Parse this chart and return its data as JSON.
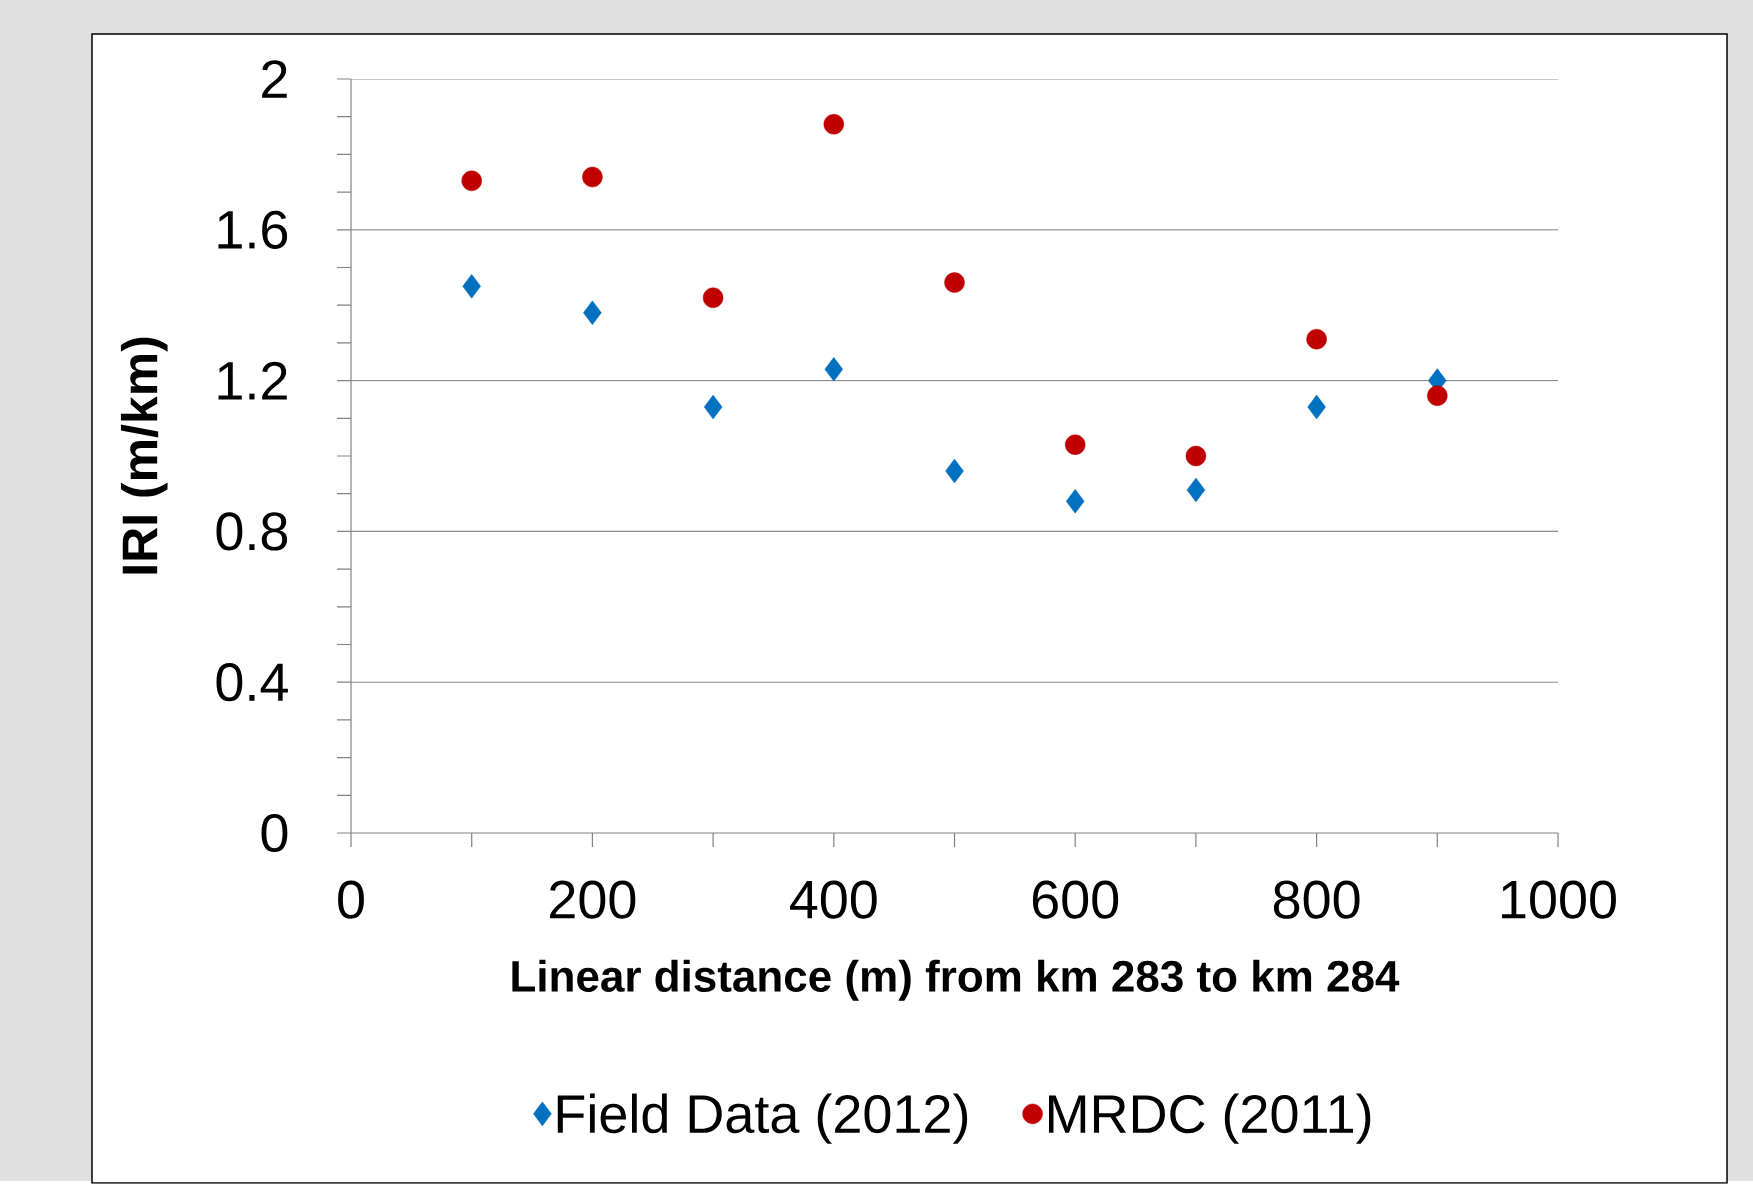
{
  "chart_data": {
    "type": "scatter",
    "xlabel": "Linear distance (m) from km 283 to km 284",
    "ylabel": "IRI (m/km)",
    "x": [
      100,
      200,
      300,
      400,
      500,
      600,
      700,
      800,
      900
    ],
    "series": [
      {
        "name": "Field Data (2012)",
        "color": "#0070c0",
        "marker": "diamond",
        "values": [
          1.45,
          1.38,
          1.13,
          1.23,
          0.96,
          0.88,
          0.91,
          1.13,
          1.2
        ]
      },
      {
        "name": "MRDC (2011)",
        "color": "#c00000",
        "marker": "circle",
        "values": [
          1.73,
          1.74,
          1.42,
          1.88,
          1.46,
          1.03,
          1.0,
          1.31,
          1.16
        ]
      }
    ],
    "xlim": [
      0,
      1000
    ],
    "xticks": [
      0,
      {
        "value": 100,
        "label": null
      },
      200,
      {
        "value": 300,
        "label": null
      },
      400,
      {
        "value": 500,
        "label": null
      },
      600,
      {
        "value": 700,
        "label": null
      },
      800,
      {
        "value": 900,
        "label": null
      },
      1000
    ],
    "ylim": [
      0,
      2
    ],
    "yticks": [
      0,
      {
        "value": 0.1,
        "label": null
      },
      {
        "value": 0.2,
        "label": null
      },
      {
        "value": 0.3,
        "label": null
      },
      0.4,
      {
        "value": 0.5,
        "label": null
      },
      {
        "value": 0.6,
        "label": null
      },
      {
        "value": 0.7,
        "label": null
      },
      0.8,
      {
        "value": 0.9,
        "label": null
      },
      {
        "value": 1.0,
        "label": null
      },
      {
        "value": 1.1,
        "label": null
      },
      1.2,
      {
        "value": 1.3,
        "label": null
      },
      {
        "value": 1.4,
        "label": null
      },
      {
        "value": 1.5,
        "label": null
      },
      1.6,
      {
        "value": 1.7,
        "label": null
      },
      {
        "value": 1.8,
        "label": null
      },
      {
        "value": 1.9,
        "label": null
      },
      2
    ],
    "grid": "y",
    "legend": "bottom"
  }
}
